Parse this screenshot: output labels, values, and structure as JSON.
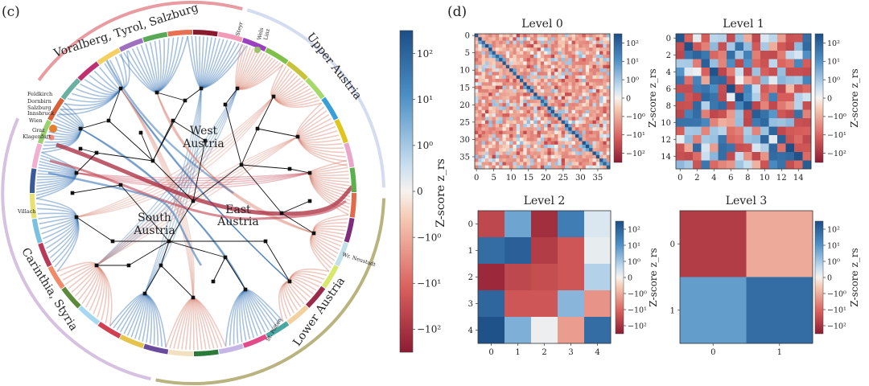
{
  "panel_c": {
    "label": "(c)",
    "regions": [
      "Voralberg, Tyrol, Salzburg",
      "Upper Austria",
      "Lower Austria",
      "Carinthia, Styria"
    ],
    "clusters": [
      "West Austria",
      "South Austria",
      "East Austria"
    ],
    "small_labels": [
      "Feldkirch",
      "Dornbirn",
      "Salzburg",
      "Innsbruck",
      "Wien",
      "Graz",
      "Klagenfurt",
      "Villach",
      "Steyr",
      "Wels",
      "Linz",
      "Wr. Neustadt",
      "St. Pölten"
    ],
    "colorbar": {
      "label": "Z-score z_rs",
      "ticks": [
        "10²",
        "10¹",
        "10⁰",
        "0",
        "−10⁰",
        "−10¹",
        "−10²"
      ],
      "colors": {
        "positive": "#2f6aa8",
        "neutral": "#f7f3ef",
        "negative": "#a8283c"
      }
    }
  },
  "panel_d": {
    "label": "(d)",
    "colorbar_label": "Z-score z_rs",
    "colorbar_ticks": [
      "10²",
      "10¹",
      "10⁰",
      "0",
      "−10⁰",
      "−10¹",
      "−10²"
    ]
  },
  "chart_data": [
    {
      "type": "heatmap",
      "title": "Level 0",
      "size": 39,
      "xticks": [
        "0",
        "5",
        "10",
        "15",
        "20",
        "25",
        "30",
        "35"
      ],
      "yticks": [
        "0",
        "5",
        "10",
        "15",
        "20",
        "25",
        "30",
        "35"
      ],
      "note": "39x39 matrix of Z-scores, predominantly weakly negative with a positive (blue) diagonal; individual cell values not legible"
    },
    {
      "type": "heatmap",
      "title": "Level 1",
      "size": 16,
      "xticks": [
        "0",
        "2",
        "4",
        "6",
        "8",
        "10",
        "12",
        "14"
      ],
      "yticks": [
        "0",
        "2",
        "4",
        "6",
        "8",
        "10",
        "12",
        "14"
      ],
      "note": "16x16 matrix of Z-scores, mixed positive/negative with positive diagonal; individual cell values not legible"
    },
    {
      "type": "heatmap",
      "title": "Level 2",
      "size": 5,
      "xticks": [
        "0",
        "1",
        "2",
        "3",
        "4"
      ],
      "yticks": [
        "0",
        "1",
        "2",
        "3",
        "4"
      ],
      "values": [
        [
          -30,
          8,
          -60,
          25,
          0.6
        ],
        [
          40,
          60,
          -40,
          -20,
          0.3
        ],
        [
          -70,
          -30,
          -25,
          -20,
          2
        ],
        [
          50,
          -20,
          -20,
          5,
          -5
        ],
        [
          90,
          6,
          0.2,
          -4,
          40
        ]
      ]
    },
    {
      "type": "heatmap",
      "title": "Level 3",
      "size": 2,
      "xticks": [
        "0",
        "1"
      ],
      "yticks": [
        "0",
        "1"
      ],
      "values": [
        [
          -40,
          -3
        ],
        [
          10,
          40
        ]
      ]
    }
  ]
}
